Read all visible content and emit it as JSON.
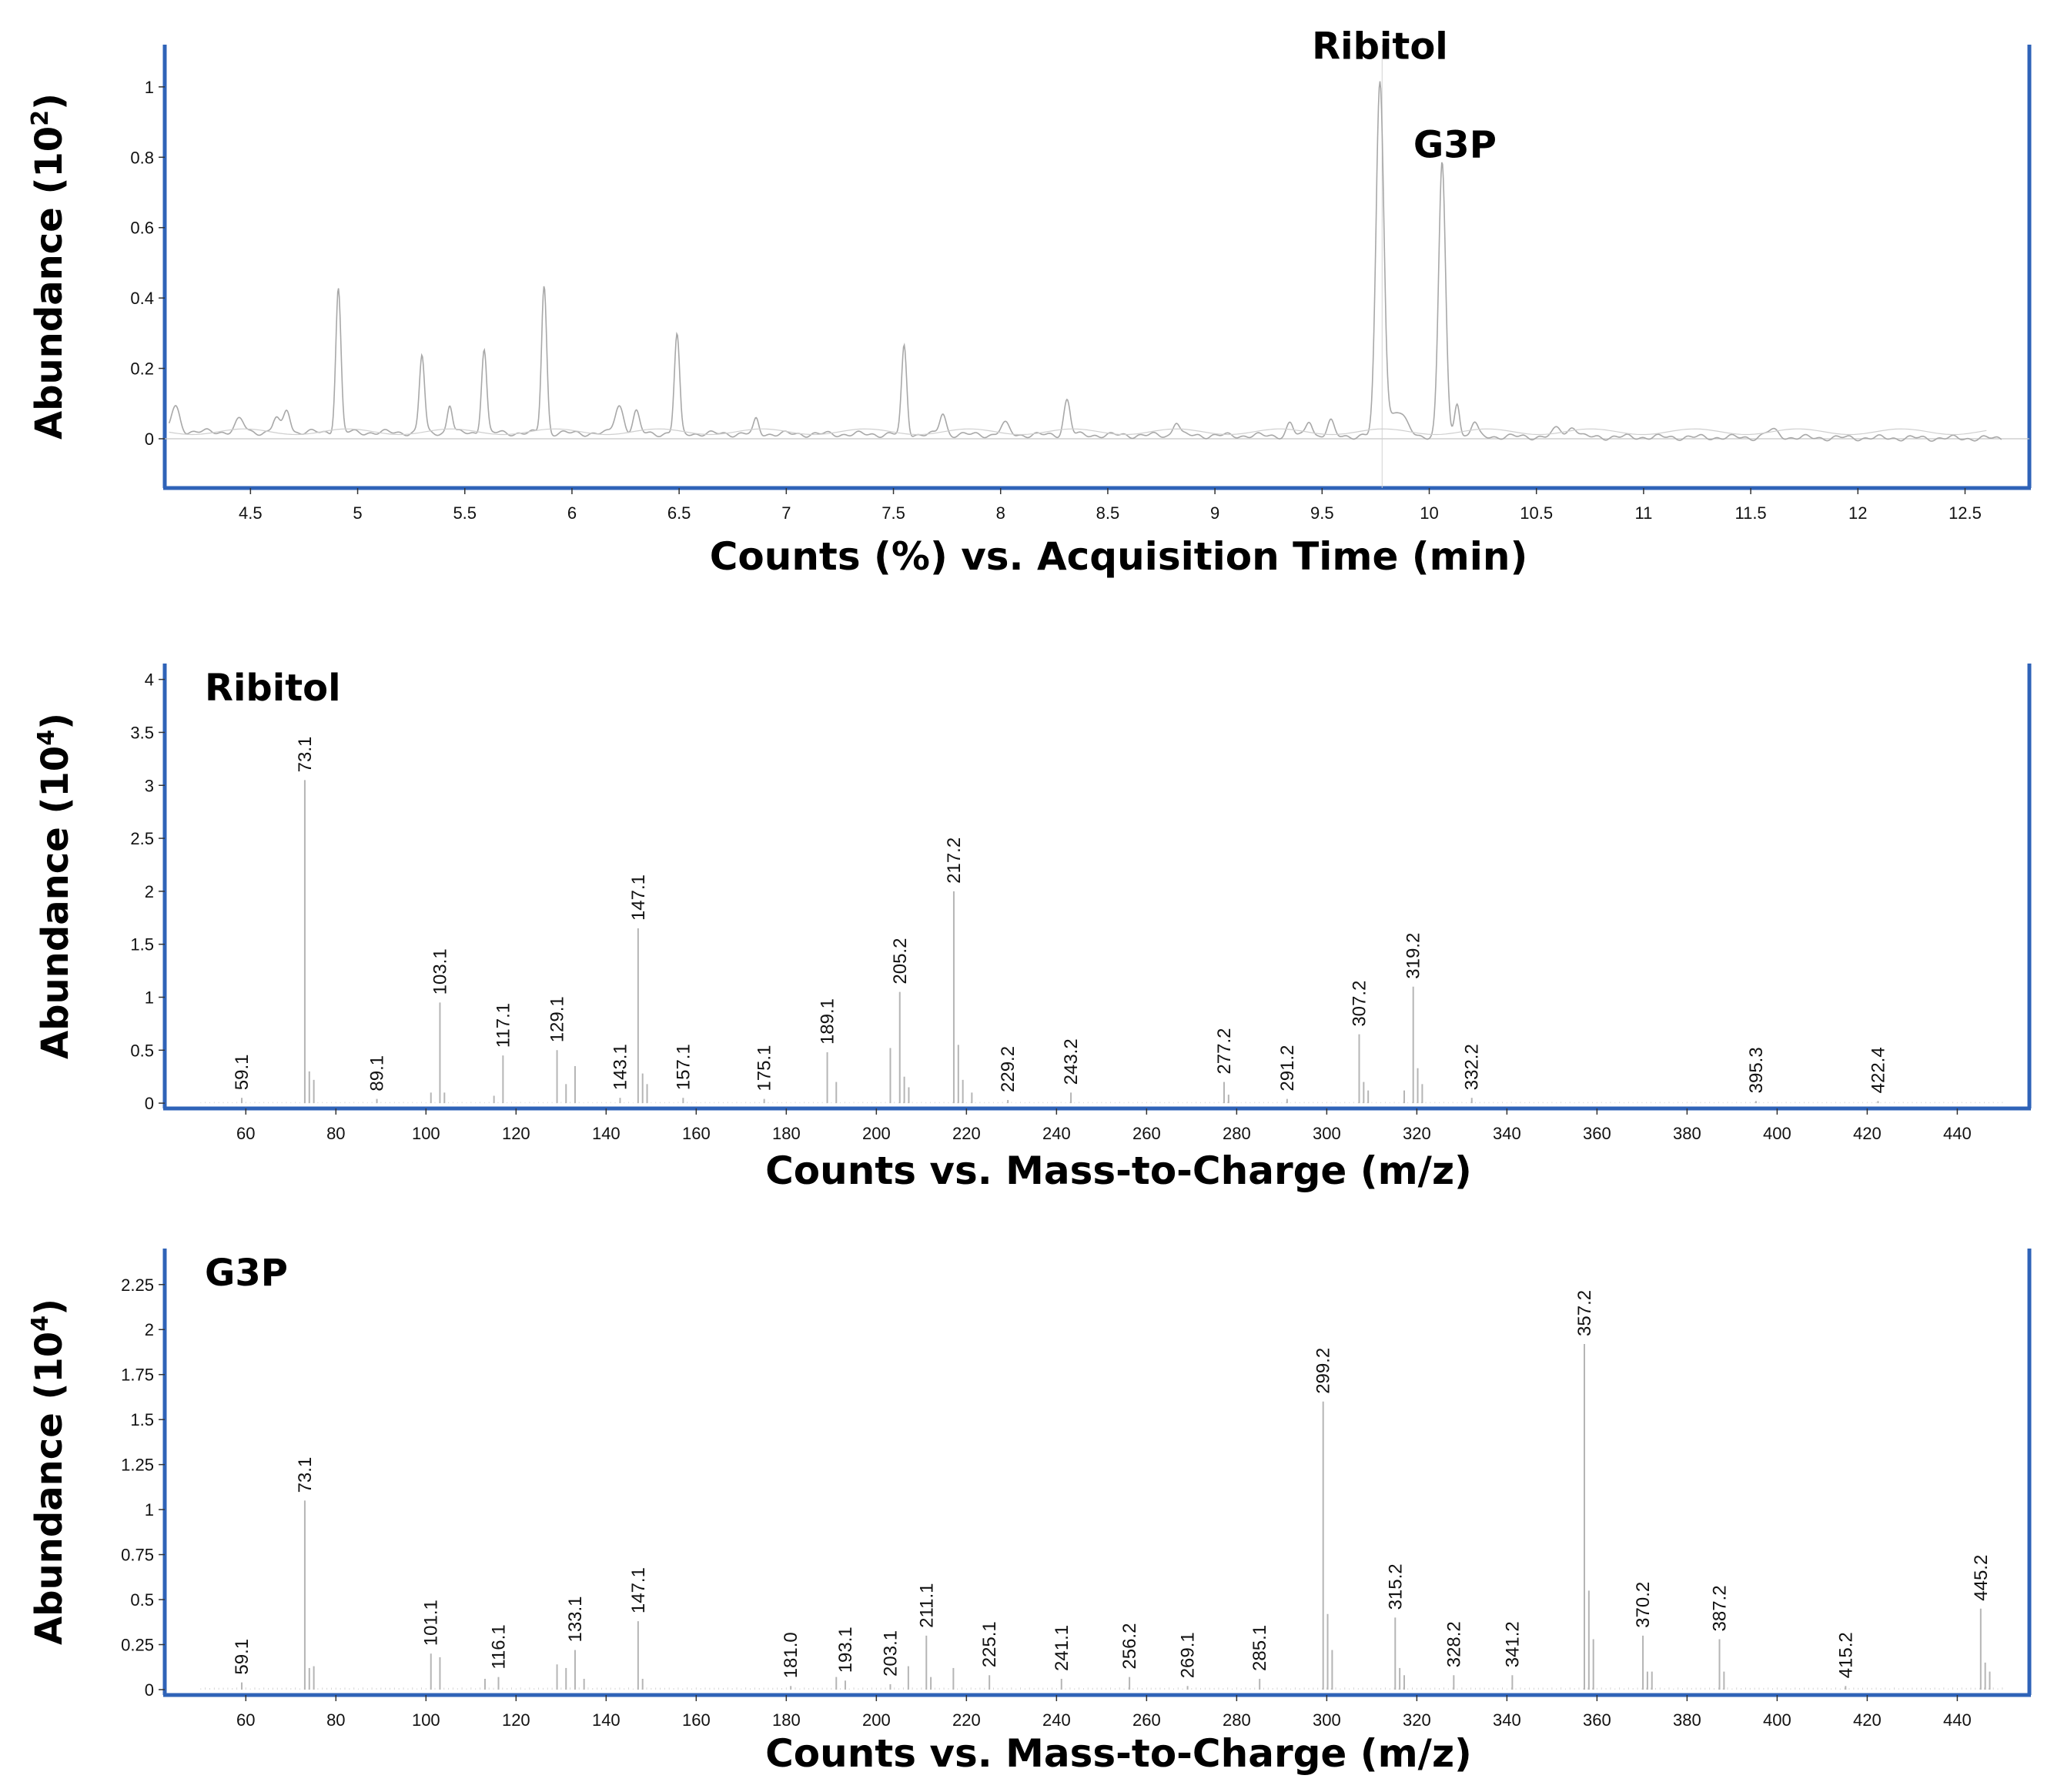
{
  "colors": {
    "frame": "#2f63b8",
    "trace": "#b8b8b8",
    "text": "#111111"
  },
  "chart_data": [
    {
      "type": "line",
      "id": "chromatogram",
      "title": "",
      "xlabel": "Counts (%) vs. Acquisition Time (min)",
      "ylabel_main": "Abundance (10",
      "ylabel_exp": "2",
      "ylabel_close": ")",
      "xlim": [
        4.1,
        12.8
      ],
      "ylim": [
        -0.14,
        1.12
      ],
      "xticks": [
        4.5,
        5,
        5.5,
        6,
        6.5,
        7,
        7.5,
        8,
        8.5,
        9,
        9.5,
        10,
        10.5,
        11,
        11.5,
        12,
        12.5
      ],
      "yticks": [
        0,
        0.2,
        0.4,
        0.6,
        0.8,
        1
      ],
      "baseline": 0.02,
      "peaks": [
        {
          "x": 4.15,
          "y": 0.07,
          "w": 0.02
        },
        {
          "x": 4.45,
          "y": 0.035,
          "w": 0.02
        },
        {
          "x": 4.62,
          "y": 0.04,
          "w": 0.015
        },
        {
          "x": 4.67,
          "y": 0.065,
          "w": 0.015
        },
        {
          "x": 4.91,
          "y": 0.41,
          "w": 0.012
        },
        {
          "x": 5.3,
          "y": 0.22,
          "w": 0.012
        },
        {
          "x": 5.43,
          "y": 0.08,
          "w": 0.012
        },
        {
          "x": 5.59,
          "y": 0.24,
          "w": 0.012
        },
        {
          "x": 5.87,
          "y": 0.42,
          "w": 0.012
        },
        {
          "x": 6.22,
          "y": 0.08,
          "w": 0.02
        },
        {
          "x": 6.3,
          "y": 0.06,
          "w": 0.015
        },
        {
          "x": 6.49,
          "y": 0.28,
          "w": 0.012
        },
        {
          "x": 6.86,
          "y": 0.04,
          "w": 0.012
        },
        {
          "x": 7.55,
          "y": 0.25,
          "w": 0.012
        },
        {
          "x": 7.73,
          "y": 0.06,
          "w": 0.015
        },
        {
          "x": 8.02,
          "y": 0.03,
          "w": 0.02
        },
        {
          "x": 8.31,
          "y": 0.1,
          "w": 0.015
        },
        {
          "x": 8.82,
          "y": 0.04,
          "w": 0.015
        },
        {
          "x": 9.35,
          "y": 0.035,
          "w": 0.015
        },
        {
          "x": 9.44,
          "y": 0.045,
          "w": 0.015
        },
        {
          "x": 9.54,
          "y": 0.04,
          "w": 0.015
        },
        {
          "x": 9.77,
          "y": 1.0,
          "w": 0.018
        },
        {
          "x": 9.85,
          "y": 0.07,
          "w": 0.04
        },
        {
          "x": 10.06,
          "y": 0.78,
          "w": 0.016
        },
        {
          "x": 10.13,
          "y": 0.1,
          "w": 0.012
        },
        {
          "x": 10.21,
          "y": 0.04,
          "w": 0.015
        },
        {
          "x": 10.6,
          "y": 0.025,
          "w": 0.02
        },
        {
          "x": 10.67,
          "y": 0.03,
          "w": 0.02
        },
        {
          "x": 11.6,
          "y": 0.02,
          "w": 0.03
        }
      ],
      "annotations": [
        {
          "text": "Ribitol",
          "x": 9.77,
          "y": 1.08
        },
        {
          "text": "G3P",
          "x": 10.12,
          "y": 0.8
        }
      ]
    },
    {
      "type": "bar",
      "id": "ribitol-spectrum",
      "title": "Ribitol",
      "xlabel": "Counts vs. Mass-to-Charge (m/z)",
      "ylabel_main": "Abundance (10",
      "ylabel_exp": "4",
      "ylabel_close": ")",
      "xlim": [
        42,
        456
      ],
      "ylim": [
        -0.05,
        4.15
      ],
      "xticks": [
        60,
        80,
        100,
        120,
        140,
        160,
        180,
        200,
        220,
        240,
        260,
        280,
        300,
        320,
        340,
        360,
        380,
        400,
        420,
        440
      ],
      "yticks": [
        0,
        0.5,
        1,
        1.5,
        2,
        2.5,
        3,
        3.5,
        4
      ],
      "peaks": [
        {
          "mz": 59.1,
          "y": 0.05,
          "label": "59.1"
        },
        {
          "mz": 73.1,
          "y": 3.05,
          "label": "73.1"
        },
        {
          "mz": 74.1,
          "y": 0.3
        },
        {
          "mz": 75.1,
          "y": 0.22
        },
        {
          "mz": 89.1,
          "y": 0.04,
          "label": "89.1"
        },
        {
          "mz": 103.1,
          "y": 0.95,
          "label": "103.1"
        },
        {
          "mz": 104.1,
          "y": 0.1
        },
        {
          "mz": 101.1,
          "y": 0.1
        },
        {
          "mz": 117.1,
          "y": 0.45,
          "label": "117.1"
        },
        {
          "mz": 115.1,
          "y": 0.07
        },
        {
          "mz": 129.1,
          "y": 0.5,
          "label": "129.1"
        },
        {
          "mz": 131.1,
          "y": 0.18
        },
        {
          "mz": 133.1,
          "y": 0.35
        },
        {
          "mz": 143.1,
          "y": 0.05,
          "label": "143.1"
        },
        {
          "mz": 147.1,
          "y": 1.65,
          "label": "147.1"
        },
        {
          "mz": 148.1,
          "y": 0.28
        },
        {
          "mz": 149.1,
          "y": 0.18
        },
        {
          "mz": 157.1,
          "y": 0.05,
          "label": "157.1"
        },
        {
          "mz": 175.1,
          "y": 0.04,
          "label": "175.1"
        },
        {
          "mz": 189.1,
          "y": 0.48,
          "label": "189.1"
        },
        {
          "mz": 191.1,
          "y": 0.2
        },
        {
          "mz": 203.1,
          "y": 0.52
        },
        {
          "mz": 205.2,
          "y": 1.05,
          "label": "205.2"
        },
        {
          "mz": 206.2,
          "y": 0.25
        },
        {
          "mz": 207.2,
          "y": 0.15
        },
        {
          "mz": 217.2,
          "y": 2.0,
          "label": "217.2"
        },
        {
          "mz": 218.2,
          "y": 0.55
        },
        {
          "mz": 219.2,
          "y": 0.22
        },
        {
          "mz": 221.2,
          "y": 0.1
        },
        {
          "mz": 229.2,
          "y": 0.03,
          "label": "229.2"
        },
        {
          "mz": 243.2,
          "y": 0.1,
          "label": "243.2"
        },
        {
          "mz": 277.2,
          "y": 0.2,
          "label": "277.2"
        },
        {
          "mz": 278.2,
          "y": 0.08
        },
        {
          "mz": 291.2,
          "y": 0.04,
          "label": "291.2"
        },
        {
          "mz": 307.2,
          "y": 0.65,
          "label": "307.2"
        },
        {
          "mz": 308.2,
          "y": 0.2
        },
        {
          "mz": 309.2,
          "y": 0.12
        },
        {
          "mz": 317.2,
          "y": 0.12
        },
        {
          "mz": 319.2,
          "y": 1.1,
          "label": "319.2"
        },
        {
          "mz": 320.2,
          "y": 0.33
        },
        {
          "mz": 321.2,
          "y": 0.18
        },
        {
          "mz": 332.2,
          "y": 0.05,
          "label": "332.2"
        },
        {
          "mz": 395.3,
          "y": 0.02,
          "label": "395.3"
        },
        {
          "mz": 422.4,
          "y": 0.02,
          "label": "422.4"
        }
      ]
    },
    {
      "type": "bar",
      "id": "g3p-spectrum",
      "title": "G3P",
      "xlabel": "Counts vs. Mass-to-Charge (m/z)",
      "ylabel_main": "Abundance (10",
      "ylabel_exp": "4",
      "ylabel_close": ")",
      "xlim": [
        42,
        456
      ],
      "ylim": [
        -0.03,
        2.45
      ],
      "xticks": [
        60,
        80,
        100,
        120,
        140,
        160,
        180,
        200,
        220,
        240,
        260,
        280,
        300,
        320,
        340,
        360,
        380,
        400,
        420,
        440
      ],
      "yticks": [
        0,
        0.25,
        0.5,
        0.75,
        1,
        1.25,
        1.5,
        1.75,
        2,
        2.25
      ],
      "peaks": [
        {
          "mz": 59.1,
          "y": 0.04,
          "label": "59.1"
        },
        {
          "mz": 73.1,
          "y": 1.05,
          "label": "73.1"
        },
        {
          "mz": 74.1,
          "y": 0.12
        },
        {
          "mz": 75.1,
          "y": 0.13
        },
        {
          "mz": 101.1,
          "y": 0.2,
          "label": "101.1"
        },
        {
          "mz": 103.1,
          "y": 0.18
        },
        {
          "mz": 116.1,
          "y": 0.07,
          "label": "116.1"
        },
        {
          "mz": 113.1,
          "y": 0.06
        },
        {
          "mz": 129.1,
          "y": 0.14
        },
        {
          "mz": 131.1,
          "y": 0.12
        },
        {
          "mz": 133.1,
          "y": 0.22,
          "label": "133.1"
        },
        {
          "mz": 135.1,
          "y": 0.06
        },
        {
          "mz": 147.1,
          "y": 0.38,
          "label": "147.1"
        },
        {
          "mz": 148.1,
          "y": 0.06
        },
        {
          "mz": 181.0,
          "y": 0.02,
          "label": "181.0"
        },
        {
          "mz": 193.1,
          "y": 0.05,
          "label": "193.1"
        },
        {
          "mz": 191.1,
          "y": 0.07
        },
        {
          "mz": 203.1,
          "y": 0.03,
          "label": "203.1"
        },
        {
          "mz": 207.1,
          "y": 0.13
        },
        {
          "mz": 211.1,
          "y": 0.3,
          "label": "211.1"
        },
        {
          "mz": 212.1,
          "y": 0.07
        },
        {
          "mz": 217.1,
          "y": 0.12
        },
        {
          "mz": 225.1,
          "y": 0.08,
          "label": "225.1"
        },
        {
          "mz": 241.1,
          "y": 0.06,
          "label": "241.1"
        },
        {
          "mz": 256.2,
          "y": 0.07,
          "label": "256.2"
        },
        {
          "mz": 269.1,
          "y": 0.02,
          "label": "269.1"
        },
        {
          "mz": 285.1,
          "y": 0.06,
          "label": "285.1"
        },
        {
          "mz": 299.2,
          "y": 1.6,
          "label": "299.2"
        },
        {
          "mz": 300.2,
          "y": 0.42
        },
        {
          "mz": 301.2,
          "y": 0.22
        },
        {
          "mz": 315.2,
          "y": 0.4,
          "label": "315.2"
        },
        {
          "mz": 316.2,
          "y": 0.12
        },
        {
          "mz": 317.2,
          "y": 0.08
        },
        {
          "mz": 328.2,
          "y": 0.08,
          "label": "328.2"
        },
        {
          "mz": 341.2,
          "y": 0.08,
          "label": "341.2"
        },
        {
          "mz": 357.2,
          "y": 1.92,
          "label": "357.2"
        },
        {
          "mz": 358.2,
          "y": 0.55
        },
        {
          "mz": 359.2,
          "y": 0.28
        },
        {
          "mz": 370.2,
          "y": 0.3,
          "label": "370.2"
        },
        {
          "mz": 371.2,
          "y": 0.1
        },
        {
          "mz": 372.2,
          "y": 0.1
        },
        {
          "mz": 387.2,
          "y": 0.28,
          "label": "387.2"
        },
        {
          "mz": 388.2,
          "y": 0.1
        },
        {
          "mz": 415.2,
          "y": 0.02,
          "label": "415.2"
        },
        {
          "mz": 445.2,
          "y": 0.45,
          "label": "445.2"
        },
        {
          "mz": 446.2,
          "y": 0.15
        },
        {
          "mz": 447.2,
          "y": 0.1
        }
      ]
    }
  ]
}
